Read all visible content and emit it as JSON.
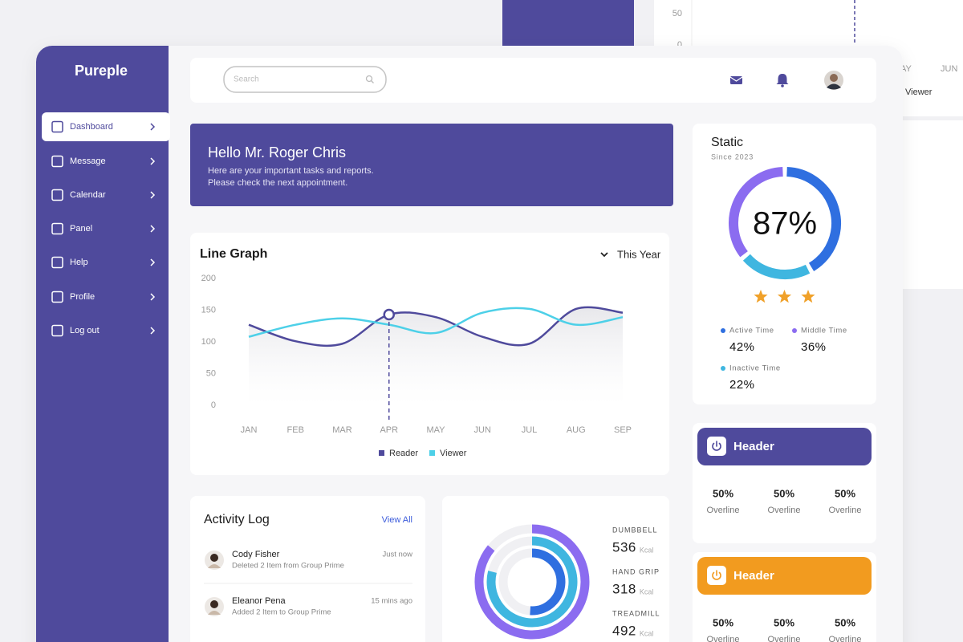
{
  "backdrop": {
    "ticks": [
      "50",
      "0"
    ],
    "months": [
      "AY",
      "JUN"
    ],
    "legend": "Viewer"
  },
  "sidebar": {
    "brand": "Pureple",
    "menu": [
      "Dashboard",
      "Message",
      "Calendar",
      "Panel",
      "Help",
      "Profile",
      "Log out"
    ],
    "active": "Dashboard"
  },
  "topbar": {
    "search_placeholder": "Search"
  },
  "greeting": {
    "title": "Hello Mr. Roger Chris",
    "lines": [
      "Here are your important tasks and reports.",
      "Please check the next appointment."
    ]
  },
  "line_graph": {
    "type": "line",
    "title": "Line Graph",
    "filter": "This Year",
    "categories": [
      "JAN",
      "FEB",
      "MAR",
      "APR",
      "MAY",
      "JUN",
      "JUL",
      "AUG",
      "SEP"
    ],
    "ylim": [
      0,
      200
    ],
    "yticks": [
      0,
      50,
      100,
      150,
      200
    ],
    "highlight": "APR",
    "series": [
      {
        "name": "Reader",
        "color": "#4f4a9c",
        "values": [
          127,
          101,
          97,
          143,
          139,
          108,
          97,
          152,
          146
        ]
      },
      {
        "name": "Viewer",
        "color": "#4dd0e8",
        "values": [
          108,
          127,
          137,
          127,
          114,
          146,
          152,
          127,
          139
        ]
      }
    ]
  },
  "static": {
    "type": "donut",
    "title": "Static",
    "subtitle": "Since 2023",
    "center_label": "87%",
    "stars": 3,
    "categories": [
      "Active Time",
      "Inactive Time",
      "Middle Time"
    ],
    "values": [
      42,
      22,
      36
    ],
    "value_labels": [
      "42%",
      "22%",
      "36%"
    ],
    "colors": [
      "#2f6fe0",
      "#3fb6e0",
      "#8b6cf0"
    ]
  },
  "activity": {
    "title": "Activity Log",
    "link": "View All",
    "entries": [
      {
        "name": "Cody Fisher",
        "text": "Deleted 2 Item from Group Prime",
        "time": "Just now"
      },
      {
        "name": "Eleanor Pena",
        "text": "Added 2 Item to Group Prime",
        "time": "15 mins ago"
      }
    ]
  },
  "workout": {
    "type": "radial",
    "items": [
      {
        "name": "DUMBBELL",
        "value": 536,
        "unit": "Kcal",
        "color": "#8b6cf0"
      },
      {
        "name": "HAND GRIP",
        "value": 318,
        "unit": "Kcal",
        "color": "#2f6fe0"
      },
      {
        "name": "TREADMILL",
        "value": 492,
        "unit": "Kcal",
        "color": "#3fb6e0"
      }
    ]
  },
  "cards": [
    {
      "title": "Header",
      "color": "#4f4a9c",
      "stats": [
        {
          "value": "50%",
          "label": "Overline"
        },
        {
          "value": "50%",
          "label": "Overline"
        },
        {
          "value": "50%",
          "label": "Overline"
        }
      ]
    },
    {
      "title": "Header",
      "color": "#f29b1f",
      "stats": [
        {
          "value": "50%",
          "label": "Overline"
        },
        {
          "value": "50%",
          "label": "Overline"
        },
        {
          "value": "50%",
          "label": "Overline"
        }
      ]
    }
  ]
}
